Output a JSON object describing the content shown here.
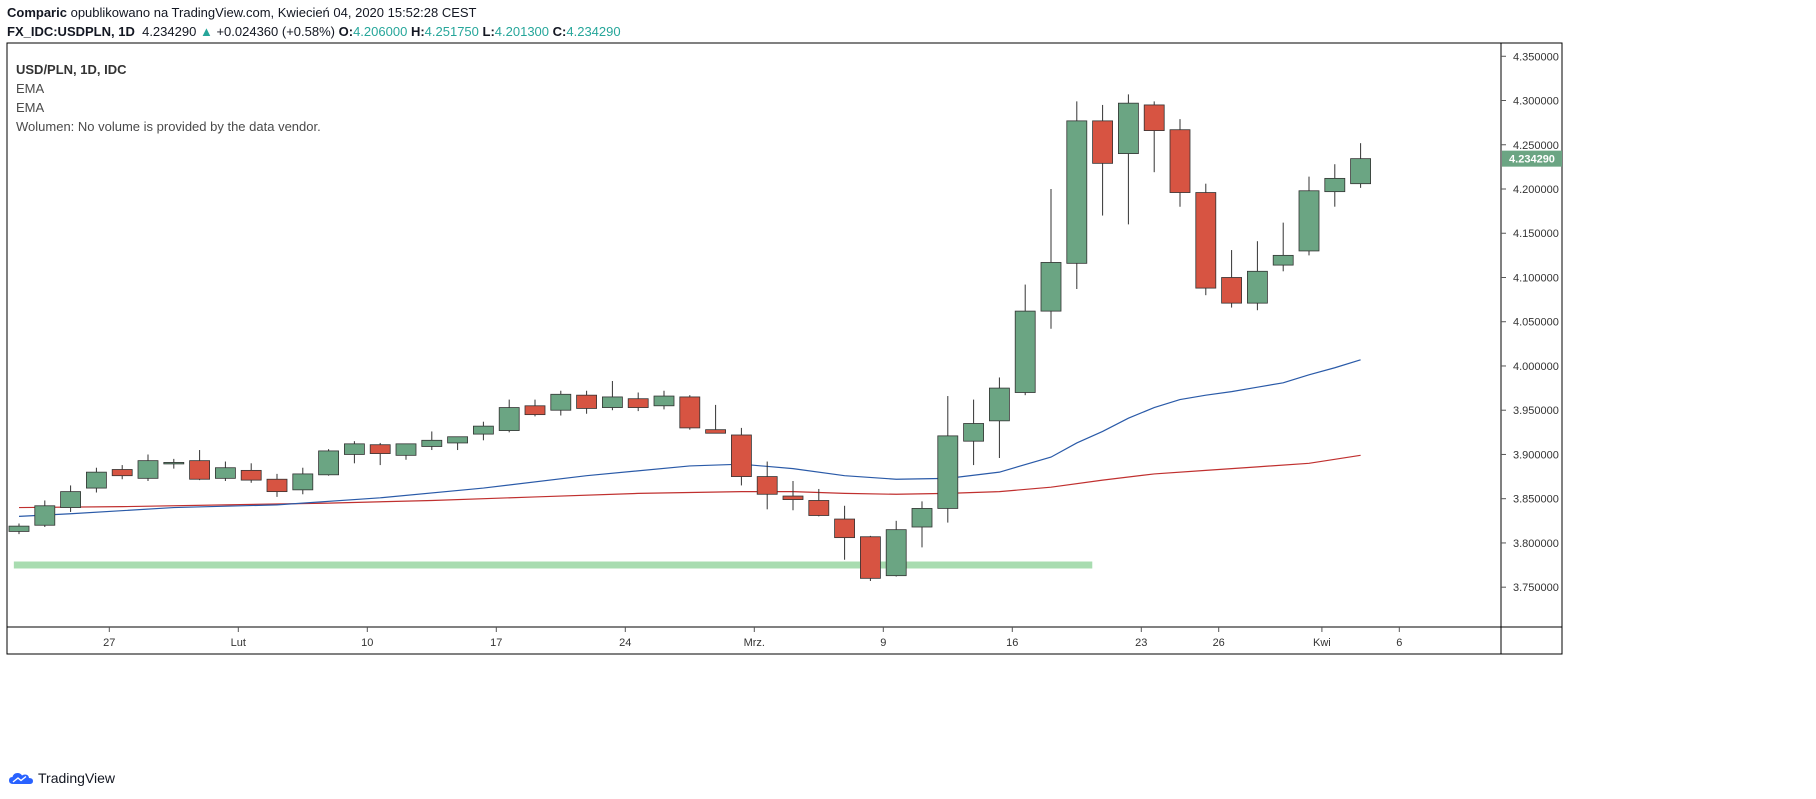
{
  "header": {
    "author": "Comparic",
    "published_text": "opublikowano na TradingView.com, Kwiecień 04, 2020 15:52:28 CEST",
    "symbol": "FX_IDC:USDPLN, 1D",
    "last": "4.234290",
    "change": "+0.024360 (+0.58%)",
    "o_label": "O:",
    "o": "4.206000",
    "h_label": "H:",
    "h": "4.251750",
    "l_label": "L:",
    "l": "4.201300",
    "c_label": "C:",
    "c": "4.234290"
  },
  "legend": {
    "title": "USD/PLN, 1D, IDC",
    "ema1": "EMA",
    "ema2": "EMA",
    "volume": "Wolumen: No volume is provided by the data vendor."
  },
  "footer": {
    "brand": "TradingView"
  },
  "colors": {
    "up": "#6ba583",
    "down": "#d75442",
    "ema_fast": "#2a5aa8",
    "ema_slow": "#c0302f",
    "support": "#a8dcb0",
    "price_tag": "#6ba583"
  },
  "chart_data": {
    "type": "candlestick",
    "title": "USD/PLN, 1D, IDC",
    "y_range": [
      3.705,
      4.365
    ],
    "y_ticks": [
      "3.750000",
      "3.800000",
      "3.850000",
      "3.900000",
      "3.950000",
      "4.000000",
      "4.050000",
      "4.100000",
      "4.150000",
      "4.200000",
      "4.250000",
      "4.300000",
      "4.350000"
    ],
    "x_ticks": [
      {
        "label": "27",
        "index": 3.5
      },
      {
        "label": "Lut",
        "index": 8.5
      },
      {
        "label": "10",
        "index": 13.5
      },
      {
        "label": "17",
        "index": 18.5
      },
      {
        "label": "24",
        "index": 23.5
      },
      {
        "label": "Mrz.",
        "index": 28.5
      },
      {
        "label": "9",
        "index": 33.5
      },
      {
        "label": "16",
        "index": 38.5
      },
      {
        "label": "23",
        "index": 43.5
      },
      {
        "label": "26",
        "index": 46.5
      },
      {
        "label": "Kwi",
        "index": 50.5
      },
      {
        "label": "6",
        "index": 53.5
      }
    ],
    "last_price_label": "4.234290",
    "candles": [
      {
        "o": 3.813,
        "h": 3.822,
        "l": 3.81,
        "c": 3.819
      },
      {
        "o": 3.82,
        "h": 3.848,
        "l": 3.818,
        "c": 3.842
      },
      {
        "o": 3.84,
        "h": 3.865,
        "l": 3.835,
        "c": 3.858
      },
      {
        "o": 3.862,
        "h": 3.885,
        "l": 3.857,
        "c": 3.88
      },
      {
        "o": 3.883,
        "h": 3.888,
        "l": 3.872,
        "c": 3.876
      },
      {
        "o": 3.873,
        "h": 3.9,
        "l": 3.87,
        "c": 3.893
      },
      {
        "o": 3.89,
        "h": 3.895,
        "l": 3.884,
        "c": 3.891
      },
      {
        "o": 3.893,
        "h": 3.905,
        "l": 3.871,
        "c": 3.872
      },
      {
        "o": 3.873,
        "h": 3.892,
        "l": 3.87,
        "c": 3.885
      },
      {
        "o": 3.882,
        "h": 3.89,
        "l": 3.868,
        "c": 3.871
      },
      {
        "o": 3.872,
        "h": 3.878,
        "l": 3.852,
        "c": 3.858
      },
      {
        "o": 3.86,
        "h": 3.885,
        "l": 3.855,
        "c": 3.878
      },
      {
        "o": 3.877,
        "h": 3.906,
        "l": 3.876,
        "c": 3.904
      },
      {
        "o": 3.9,
        "h": 3.915,
        "l": 3.89,
        "c": 3.912
      },
      {
        "o": 3.911,
        "h": 3.913,
        "l": 3.888,
        "c": 3.901
      },
      {
        "o": 3.899,
        "h": 3.912,
        "l": 3.894,
        "c": 3.912
      },
      {
        "o": 3.909,
        "h": 3.926,
        "l": 3.905,
        "c": 3.916
      },
      {
        "o": 3.913,
        "h": 3.92,
        "l": 3.905,
        "c": 3.92
      },
      {
        "o": 3.923,
        "h": 3.937,
        "l": 3.916,
        "c": 3.932
      },
      {
        "o": 3.927,
        "h": 3.962,
        "l": 3.925,
        "c": 3.953
      },
      {
        "o": 3.955,
        "h": 3.962,
        "l": 3.943,
        "c": 3.945
      },
      {
        "o": 3.95,
        "h": 3.972,
        "l": 3.944,
        "c": 3.968
      },
      {
        "o": 3.967,
        "h": 3.972,
        "l": 3.946,
        "c": 3.952
      },
      {
        "o": 3.953,
        "h": 3.983,
        "l": 3.95,
        "c": 3.965
      },
      {
        "o": 3.963,
        "h": 3.97,
        "l": 3.949,
        "c": 3.953
      },
      {
        "o": 3.955,
        "h": 3.972,
        "l": 3.951,
        "c": 3.966
      },
      {
        "o": 3.965,
        "h": 3.967,
        "l": 3.928,
        "c": 3.93
      },
      {
        "o": 3.928,
        "h": 3.956,
        "l": 3.924,
        "c": 3.924
      },
      {
        "o": 3.922,
        "h": 3.93,
        "l": 3.865,
        "c": 3.875
      },
      {
        "o": 3.875,
        "h": 3.892,
        "l": 3.838,
        "c": 3.855
      },
      {
        "o": 3.853,
        "h": 3.87,
        "l": 3.837,
        "c": 3.849
      },
      {
        "o": 3.848,
        "h": 3.861,
        "l": 3.83,
        "c": 3.831
      },
      {
        "o": 3.827,
        "h": 3.842,
        "l": 3.781,
        "c": 3.806
      },
      {
        "o": 3.807,
        "h": 3.808,
        "l": 3.757,
        "c": 3.76
      },
      {
        "o": 3.763,
        "h": 3.825,
        "l": 3.762,
        "c": 3.815
      },
      {
        "o": 3.818,
        "h": 3.847,
        "l": 3.795,
        "c": 3.839
      },
      {
        "o": 3.839,
        "h": 3.966,
        "l": 3.823,
        "c": 3.921
      },
      {
        "o": 3.915,
        "h": 3.962,
        "l": 3.888,
        "c": 3.935
      },
      {
        "o": 3.938,
        "h": 3.987,
        "l": 3.896,
        "c": 3.975
      },
      {
        "o": 3.97,
        "h": 4.092,
        "l": 3.967,
        "c": 4.062
      },
      {
        "o": 4.062,
        "h": 4.2,
        "l": 4.042,
        "c": 4.117
      },
      {
        "o": 4.116,
        "h": 4.299,
        "l": 4.087,
        "c": 4.277
      },
      {
        "o": 4.277,
        "h": 4.295,
        "l": 4.17,
        "c": 4.229
      },
      {
        "o": 4.24,
        "h": 4.307,
        "l": 4.16,
        "c": 4.297
      },
      {
        "o": 4.295,
        "h": 4.299,
        "l": 4.219,
        "c": 4.266
      },
      {
        "o": 4.267,
        "h": 4.279,
        "l": 4.18,
        "c": 4.196
      },
      {
        "o": 4.196,
        "h": 4.206,
        "l": 4.08,
        "c": 4.088
      },
      {
        "o": 4.1,
        "h": 4.131,
        "l": 4.066,
        "c": 4.071
      },
      {
        "o": 4.071,
        "h": 4.141,
        "l": 4.063,
        "c": 4.107
      },
      {
        "o": 4.114,
        "h": 4.162,
        "l": 4.107,
        "c": 4.125
      },
      {
        "o": 4.13,
        "h": 4.214,
        "l": 4.125,
        "c": 4.198
      },
      {
        "o": 4.197,
        "h": 4.228,
        "l": 4.18,
        "c": 4.212
      },
      {
        "o": 4.206,
        "h": 4.2518,
        "l": 4.2013,
        "c": 4.2343
      }
    ],
    "ema_fast": [
      [
        0,
        3.83
      ],
      [
        2,
        3.833
      ],
      [
        6,
        3.84
      ],
      [
        10,
        3.843
      ],
      [
        14,
        3.851
      ],
      [
        18,
        3.862
      ],
      [
        22,
        3.876
      ],
      [
        26,
        3.887
      ],
      [
        28,
        3.889
      ],
      [
        30,
        3.884
      ],
      [
        32,
        3.876
      ],
      [
        34,
        3.872
      ],
      [
        36,
        3.873
      ],
      [
        38,
        3.88
      ],
      [
        40,
        3.897
      ],
      [
        41,
        3.913
      ],
      [
        42,
        3.926
      ],
      [
        43,
        3.941
      ],
      [
        44,
        3.953
      ],
      [
        45,
        3.962
      ],
      [
        46,
        3.967
      ],
      [
        47,
        3.971
      ],
      [
        48,
        3.976
      ],
      [
        49,
        3.981
      ],
      [
        50,
        3.99
      ],
      [
        51,
        3.998
      ],
      [
        52,
        4.007
      ]
    ],
    "ema_slow": [
      [
        0,
        3.84
      ],
      [
        4,
        3.841
      ],
      [
        8,
        3.843
      ],
      [
        12,
        3.845
      ],
      [
        16,
        3.848
      ],
      [
        20,
        3.852
      ],
      [
        24,
        3.856
      ],
      [
        28,
        3.858
      ],
      [
        30,
        3.858
      ],
      [
        32,
        3.856
      ],
      [
        34,
        3.855
      ],
      [
        36,
        3.856
      ],
      [
        38,
        3.858
      ],
      [
        40,
        3.863
      ],
      [
        42,
        3.871
      ],
      [
        44,
        3.878
      ],
      [
        46,
        3.882
      ],
      [
        48,
        3.886
      ],
      [
        50,
        3.89
      ],
      [
        52,
        3.899
      ]
    ],
    "support_level": {
      "price": 3.775,
      "from_index": -0.2,
      "to_index": 41.6
    }
  }
}
